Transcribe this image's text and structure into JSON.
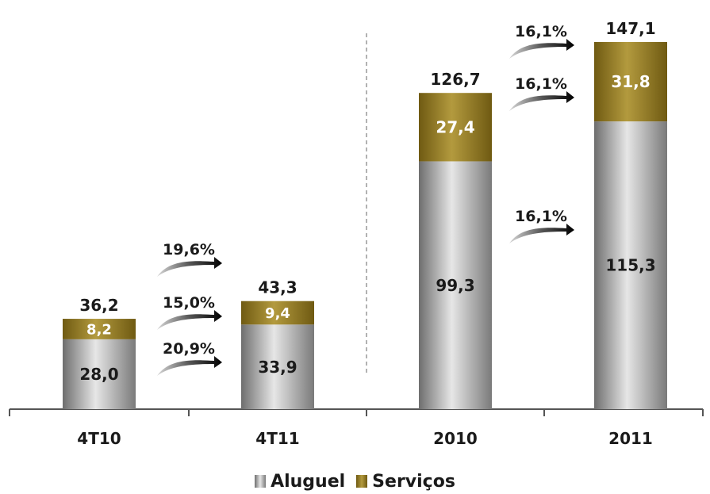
{
  "chart_data": {
    "type": "bar",
    "stacked": true,
    "categories": [
      "4T10",
      "4T11",
      "2010",
      "2011"
    ],
    "series": [
      {
        "name": "Aluguel",
        "values": [
          28.0,
          33.9,
          99.3,
          115.3
        ],
        "labels": [
          "28,0",
          "33,9",
          "99,3",
          "115,3"
        ],
        "color": "#9a9a9a"
      },
      {
        "name": "Serviços",
        "values": [
          8.2,
          9.4,
          27.4,
          31.8
        ],
        "labels": [
          "8,2",
          "9,4",
          "27,4",
          "31,8"
        ],
        "color": "#8c7426"
      }
    ],
    "totals": [
      36.2,
      43.3,
      126.7,
      147.1
    ],
    "total_labels": [
      "36,2",
      "43,3",
      "126,7",
      "147,1"
    ],
    "growth_annotations": [
      {
        "from": "4T10",
        "to": "4T11",
        "series": "Total",
        "label": "19,6%"
      },
      {
        "from": "4T10",
        "to": "4T11",
        "series": "Serviços",
        "label": "15,0%"
      },
      {
        "from": "4T10",
        "to": "4T11",
        "series": "Aluguel",
        "label": "20,9%"
      },
      {
        "from": "2010",
        "to": "2011",
        "series": "Total",
        "label": "16,1%"
      },
      {
        "from": "2010",
        "to": "2011",
        "series": "Serviços",
        "label": "16,1%"
      },
      {
        "from": "2010",
        "to": "2011",
        "series": "Aluguel",
        "label": "16,1%"
      }
    ],
    "ylim": [
      0,
      147.1
    ],
    "title": "",
    "xlabel": "",
    "ylabel": "",
    "legend_position": "bottom-center",
    "grid": false
  }
}
